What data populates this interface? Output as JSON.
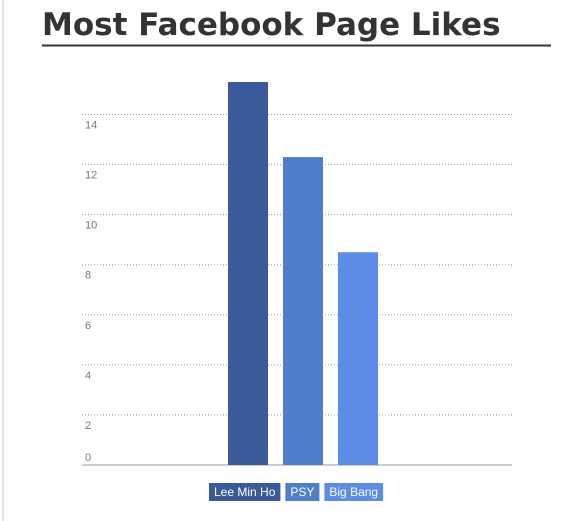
{
  "chart_data": {
    "type": "bar",
    "title": "Most Facebook Page Likes",
    "categories": [
      "Lee Min Ho",
      "PSY",
      "Big Bang"
    ],
    "values": [
      15.3,
      12.3,
      8.5
    ],
    "colors": [
      "#3a5a9b",
      "#4f7ecb",
      "#5a8ce8"
    ],
    "ylim": [
      0,
      15.3
    ],
    "yticks": [
      0,
      2,
      4,
      6,
      8,
      10,
      12,
      14
    ],
    "grid": true
  }
}
